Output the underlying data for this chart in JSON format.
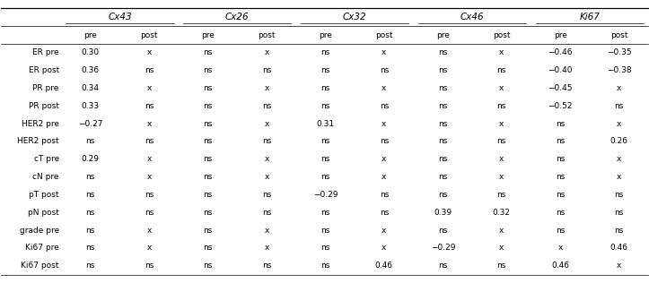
{
  "col_groups": [
    "Cx43",
    "Cx26",
    "Cx32",
    "Cx46",
    "Ki67"
  ],
  "sub_cols": [
    "pre",
    "post"
  ],
  "row_labels": [
    "ER pre",
    "ER post",
    "PR pre",
    "PR post",
    "HER2 pre",
    "HER2 post",
    "cT pre",
    "cN pre",
    "pT post",
    "pN post",
    "grade pre",
    "Ki67 pre",
    "Ki67 post"
  ],
  "cell_data": [
    [
      "0.30",
      "x",
      "ns",
      "x",
      "ns",
      "x",
      "ns",
      "x",
      "−0.46",
      "−0.35"
    ],
    [
      "0.36",
      "ns",
      "ns",
      "ns",
      "ns",
      "ns",
      "ns",
      "ns",
      "−0.40",
      "−0.38"
    ],
    [
      "0.34",
      "x",
      "ns",
      "x",
      "ns",
      "x",
      "ns",
      "x",
      "−0.45",
      "x"
    ],
    [
      "0.33",
      "ns",
      "ns",
      "ns",
      "ns",
      "ns",
      "ns",
      "ns",
      "−0.52",
      "ns"
    ],
    [
      "−0.27",
      "x",
      "ns",
      "x",
      "0.31",
      "x",
      "ns",
      "x",
      "ns",
      "x"
    ],
    [
      "ns",
      "ns",
      "ns",
      "ns",
      "ns",
      "ns",
      "ns",
      "ns",
      "ns",
      "0.26"
    ],
    [
      "0.29",
      "x",
      "ns",
      "x",
      "ns",
      "x",
      "ns",
      "x",
      "ns",
      "x"
    ],
    [
      "ns",
      "x",
      "ns",
      "x",
      "ns",
      "x",
      "ns",
      "x",
      "ns",
      "x"
    ],
    [
      "ns",
      "ns",
      "ns",
      "ns",
      "−0.29",
      "ns",
      "ns",
      "ns",
      "ns",
      "ns"
    ],
    [
      "ns",
      "ns",
      "ns",
      "ns",
      "ns",
      "ns",
      "0.39",
      "0.32",
      "ns",
      "ns"
    ],
    [
      "ns",
      "x",
      "ns",
      "x",
      "ns",
      "x",
      "ns",
      "x",
      "ns",
      "ns"
    ],
    [
      "ns",
      "x",
      "ns",
      "x",
      "ns",
      "x",
      "−0.29",
      "x",
      "x",
      "0.46"
    ],
    [
      "ns",
      "ns",
      "ns",
      "ns",
      "ns",
      "0.46",
      "ns",
      "ns",
      "0.46",
      "x"
    ]
  ],
  "header_line_color": "#000000",
  "text_color": "#000000",
  "bg_color": "#ffffff",
  "font_size": 6.5,
  "header_font_size": 7.5,
  "sub_header_font_size": 6.5,
  "row_label_font_size": 6.5
}
